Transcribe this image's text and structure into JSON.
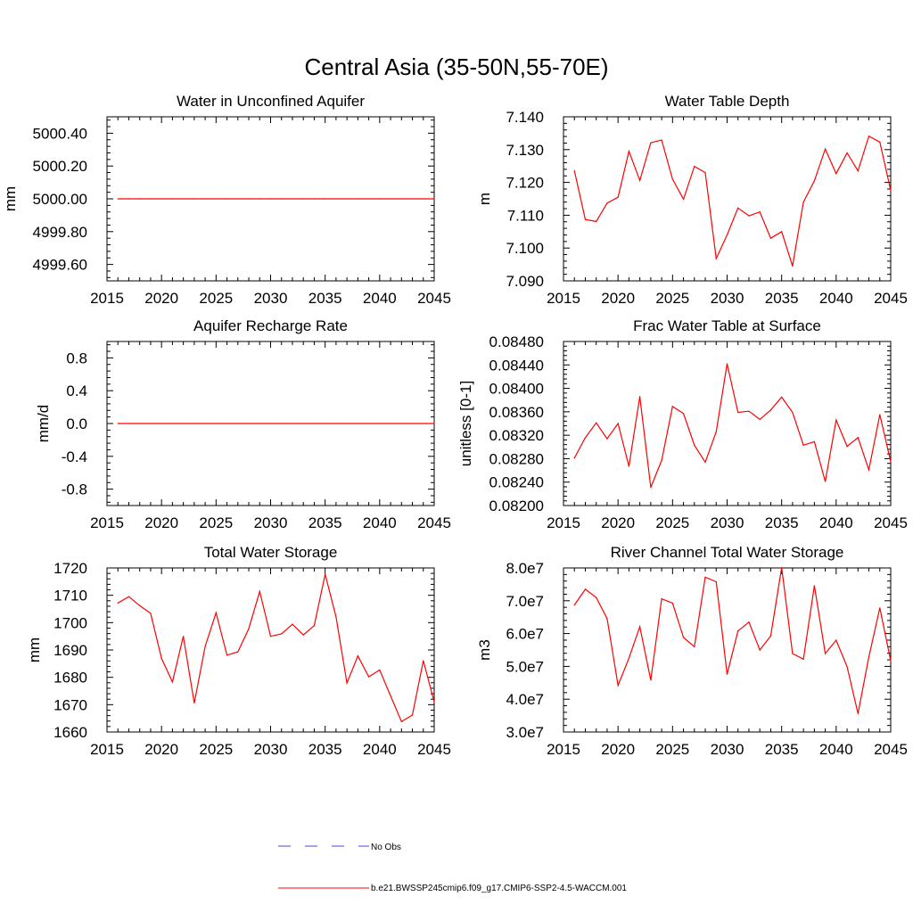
{
  "figure": {
    "title": "Central Asia (35-50N,55-70E)",
    "legend": {
      "no_obs_label": "No Obs",
      "model_label": "b.e21.BWSSP245cmip6.f09_g17.CMIP6-SSP2-4.5-WACCM.001",
      "no_obs_color": "#4a4ad0",
      "model_color": "#ff0000"
    }
  },
  "chart_data": [
    {
      "type": "line",
      "title": "Water in Unconfined Aquifer",
      "ylabel": "mm",
      "xlim": [
        2015,
        2045
      ],
      "ylim": [
        4999.5,
        5000.5
      ],
      "yticks": [
        "4999.60",
        "4999.80",
        "5000.00",
        "5000.20",
        "5000.40"
      ],
      "xticks": [
        "2015",
        "2020",
        "2025",
        "2030",
        "2035",
        "2040",
        "2045"
      ],
      "x": [
        2016,
        2017,
        2018,
        2019,
        2020,
        2021,
        2022,
        2023,
        2024,
        2025,
        2026,
        2027,
        2028,
        2029,
        2030,
        2031,
        2032,
        2033,
        2034,
        2035,
        2036,
        2037,
        2038,
        2039,
        2040,
        2041,
        2042,
        2043,
        2044,
        2045
      ],
      "series": [
        {
          "values": [
            5000,
            5000,
            5000,
            5000,
            5000,
            5000,
            5000,
            5000,
            5000,
            5000,
            5000,
            5000,
            5000,
            5000,
            5000,
            5000,
            5000,
            5000,
            5000,
            5000,
            5000,
            5000,
            5000,
            5000,
            5000,
            5000,
            5000,
            5000,
            5000,
            5000
          ],
          "color": "#ff0000"
        }
      ]
    },
    {
      "type": "line",
      "title": "Water Table Depth",
      "ylabel": "m",
      "xlim": [
        2015,
        2045
      ],
      "ylim": [
        7.09,
        7.14
      ],
      "yticks": [
        "7.090",
        "7.100",
        "7.110",
        "7.120",
        "7.130",
        "7.140"
      ],
      "xticks": [
        "2015",
        "2020",
        "2025",
        "2030",
        "2035",
        "2040",
        "2045"
      ],
      "x": [
        2016,
        2017,
        2018,
        2019,
        2020,
        2021,
        2022,
        2023,
        2024,
        2025,
        2026,
        2027,
        2028,
        2029,
        2030,
        2031,
        2032,
        2033,
        2034,
        2035,
        2036,
        2037,
        2038,
        2039,
        2040,
        2041,
        2042,
        2043,
        2044,
        2045
      ],
      "series": [
        {
          "values": [
            7.1236,
            7.1087,
            7.1081,
            7.1137,
            7.1155,
            7.1295,
            7.1206,
            7.1321,
            7.1329,
            7.121,
            7.1149,
            7.1249,
            7.123,
            7.0968,
            7.104,
            7.1122,
            7.1098,
            7.111,
            7.103,
            7.105,
            7.0945,
            7.114,
            7.1205,
            7.1302,
            7.1227,
            7.129,
            7.1235,
            7.1341,
            7.1323,
            7.1175
          ],
          "color": "#ff0000"
        }
      ]
    },
    {
      "type": "line",
      "title": "Aquifer Recharge Rate",
      "ylabel": "mm/d",
      "xlim": [
        2015,
        2045
      ],
      "ylim": [
        -1.0,
        1.0
      ],
      "yticks": [
        "-0.8",
        "-0.4",
        "0.0",
        "0.4",
        "0.8"
      ],
      "xticks": [
        "2015",
        "2020",
        "2025",
        "2030",
        "2035",
        "2040",
        "2045"
      ],
      "x": [
        2016,
        2017,
        2018,
        2019,
        2020,
        2021,
        2022,
        2023,
        2024,
        2025,
        2026,
        2027,
        2028,
        2029,
        2030,
        2031,
        2032,
        2033,
        2034,
        2035,
        2036,
        2037,
        2038,
        2039,
        2040,
        2041,
        2042,
        2043,
        2044,
        2045
      ],
      "series": [
        {
          "values": [
            0,
            0,
            0,
            0,
            0,
            0,
            0,
            0,
            0,
            0,
            0,
            0,
            0,
            0,
            0,
            0,
            0,
            0,
            0,
            0,
            0,
            0,
            0,
            0,
            0,
            0,
            0,
            0,
            0,
            0
          ],
          "color": "#ff0000"
        }
      ]
    },
    {
      "type": "line",
      "title": "Frac Water Table at Surface",
      "ylabel": "unitless [0-1]",
      "xlim": [
        2015,
        2045
      ],
      "ylim": [
        0.082,
        0.0848
      ],
      "yticks": [
        "0.08200",
        "0.08240",
        "0.08280",
        "0.08320",
        "0.08360",
        "0.08400",
        "0.08440",
        "0.08480"
      ],
      "xticks": [
        "2015",
        "2020",
        "2025",
        "2030",
        "2035",
        "2040",
        "2045"
      ],
      "x": [
        2016,
        2017,
        2018,
        2019,
        2020,
        2021,
        2022,
        2023,
        2024,
        2025,
        2026,
        2027,
        2028,
        2029,
        2030,
        2031,
        2032,
        2033,
        2034,
        2035,
        2036,
        2037,
        2038,
        2039,
        2040,
        2041,
        2042,
        2043,
        2044,
        2045
      ],
      "series": [
        {
          "values": [
            0.08281,
            0.08316,
            0.08341,
            0.08314,
            0.0834,
            0.08267,
            0.08386,
            0.08231,
            0.08277,
            0.08369,
            0.08357,
            0.08303,
            0.08274,
            0.08326,
            0.08442,
            0.08359,
            0.08361,
            0.08347,
            0.08363,
            0.08385,
            0.08359,
            0.08303,
            0.08309,
            0.08241,
            0.08346,
            0.08301,
            0.08316,
            0.08261,
            0.08355,
            0.08275
          ],
          "color": "#ff0000"
        }
      ]
    },
    {
      "type": "line",
      "title": "Total Water Storage",
      "ylabel": "mm",
      "xlim": [
        2015,
        2045
      ],
      "ylim": [
        1660,
        1720
      ],
      "yticks": [
        "1660",
        "1670",
        "1680",
        "1690",
        "1700",
        "1710",
        "1720"
      ],
      "xticks": [
        "2015",
        "2020",
        "2025",
        "2030",
        "2035",
        "2040",
        "2045"
      ],
      "x": [
        2016,
        2017,
        2018,
        2019,
        2020,
        2021,
        2022,
        2023,
        2024,
        2025,
        2026,
        2027,
        2028,
        2029,
        2030,
        2031,
        2032,
        2033,
        2034,
        2035,
        2036,
        2037,
        2038,
        2039,
        2040,
        2041,
        2042,
        2043,
        2044,
        2045
      ],
      "series": [
        {
          "values": [
            1707.2,
            1709.5,
            1706.2,
            1703.4,
            1686.9,
            1678.3,
            1695.0,
            1670.6,
            1691.3,
            1703.6,
            1688.1,
            1689.3,
            1697.8,
            1711.4,
            1695.0,
            1695.9,
            1699.4,
            1695.5,
            1698.9,
            1717.7,
            1702.1,
            1677.9,
            1687.8,
            1680.2,
            1682.7,
            1673.2,
            1663.8,
            1666.2,
            1686.1,
            1671.0
          ],
          "color": "#ff0000"
        }
      ]
    },
    {
      "type": "line",
      "title": "River Channel Total Water Storage",
      "ylabel": "m3",
      "xlim": [
        2015,
        2045
      ],
      "ylim": [
        30000000,
        80000000
      ],
      "yticks": [
        "3.0e7",
        "4.0e7",
        "5.0e7",
        "6.0e7",
        "7.0e7",
        "8.0e7"
      ],
      "xticks": [
        "2015",
        "2020",
        "2025",
        "2030",
        "2035",
        "2040",
        "2045"
      ],
      "x": [
        2016,
        2017,
        2018,
        2019,
        2020,
        2021,
        2022,
        2023,
        2024,
        2025,
        2026,
        2027,
        2028,
        2029,
        2030,
        2031,
        2032,
        2033,
        2034,
        2035,
        2036,
        2037,
        2038,
        2039,
        2040,
        2041,
        2042,
        2043,
        2044,
        2045
      ],
      "series": [
        {
          "values": [
            68700000,
            73500000,
            71000000,
            64600000,
            44200000,
            52500000,
            62100000,
            45800000,
            70600000,
            69300000,
            58800000,
            56000000,
            77200000,
            75800000,
            47600000,
            60800000,
            63500000,
            55000000,
            59300000,
            80100000,
            53900000,
            52200000,
            74600000,
            53900000,
            58000000,
            49900000,
            35600000,
            52900000,
            67800000,
            51700000
          ],
          "color": "#ff0000"
        }
      ]
    }
  ]
}
